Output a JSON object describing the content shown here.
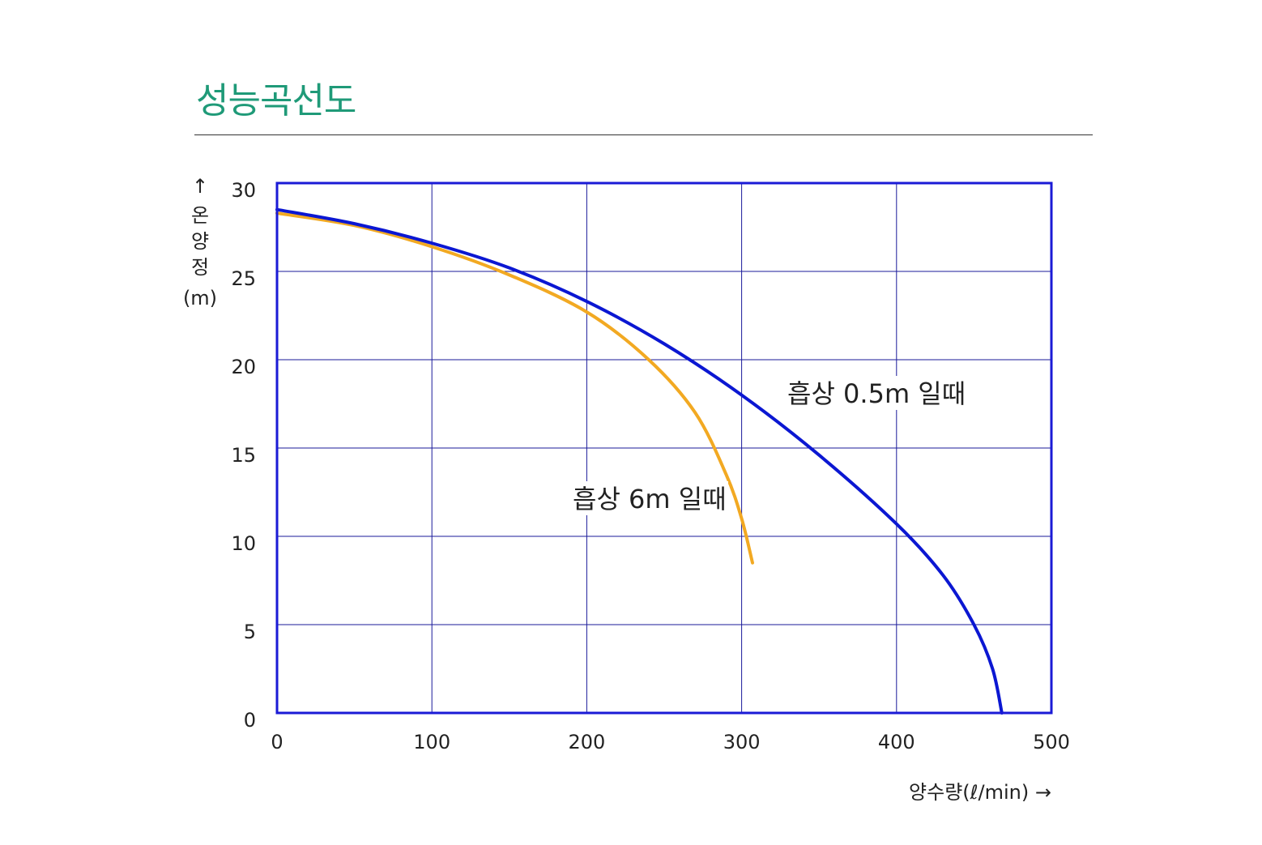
{
  "page": {
    "title": "성능곡선도"
  },
  "chart_data": {
    "type": "line",
    "xlabel": "양수량(ℓ/min) →",
    "ylabel": "↑ 온양정 (m)",
    "ylabel_lines": [
      "↑",
      "온",
      "양",
      "정",
      "(m)"
    ],
    "xlim": [
      0,
      500
    ],
    "ylim": [
      0,
      30
    ],
    "x_ticks": [
      0,
      100,
      200,
      300,
      400,
      500
    ],
    "y_ticks": [
      0,
      5,
      10,
      15,
      20,
      25,
      30
    ],
    "x_tick_labels": [
      "0",
      "100",
      "200",
      "300",
      "400",
      "500"
    ],
    "y_tick_labels": [
      "0",
      "5",
      "10",
      "15",
      "20",
      "25",
      "30"
    ],
    "grid": true,
    "colors": {
      "frame": "#1a1ad6",
      "grid": "#1a1a9a",
      "title": "#1f9a78"
    },
    "series": [
      {
        "name": "흡상 0.5m 일때",
        "color": "#0b17d2",
        "x": [
          0,
          50,
          100,
          150,
          200,
          250,
          300,
          350,
          400,
          430,
          450,
          462,
          468
        ],
        "y": [
          28.5,
          27.7,
          26.6,
          25.2,
          23.3,
          20.9,
          18.0,
          14.6,
          10.7,
          7.8,
          5.0,
          2.5,
          0
        ]
      },
      {
        "name": "흡상 6m 일때",
        "color": "#f2a922",
        "x": [
          0,
          50,
          100,
          150,
          200,
          240,
          270,
          290,
          300,
          307
        ],
        "y": [
          28.3,
          27.6,
          26.4,
          24.8,
          22.7,
          20.0,
          17.0,
          13.5,
          11.0,
          8.5
        ]
      }
    ]
  }
}
